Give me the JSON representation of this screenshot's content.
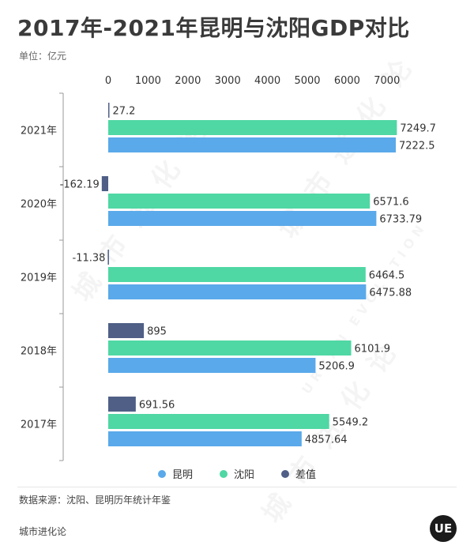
{
  "header": {
    "title": "2017年-2021年昆明与沈阳GDP对比",
    "unit": "单位：亿元"
  },
  "colors": {
    "kunming": "#5aa9ea",
    "shenyang": "#4fd7a4",
    "diff": "#4f5f86",
    "axis": "#999999",
    "tick_text": "#333333"
  },
  "chart_data": {
    "type": "bar",
    "orientation": "horizontal",
    "categories": [
      "2021年",
      "2020年",
      "2019年",
      "2018年",
      "2017年"
    ],
    "series": [
      {
        "name": "差值",
        "values": [
          27.2,
          -162.19,
          -11.38,
          895,
          691.56
        ],
        "labels": [
          "27.2",
          "-162.19",
          "-11.38",
          "895",
          "691.56"
        ]
      },
      {
        "name": "沈阳",
        "values": [
          7249.7,
          6571.6,
          6464.5,
          6101.9,
          5549.2
        ],
        "labels": [
          "7249.7",
          "6571.6",
          "6464.5",
          "6101.9",
          "5549.2"
        ]
      },
      {
        "name": "昆明",
        "values": [
          7222.5,
          6733.79,
          6475.88,
          5206.9,
          4857.64
        ],
        "labels": [
          "7222.5",
          "6733.79",
          "6475.88",
          "5206.9",
          "4857.64"
        ]
      }
    ],
    "xticks": [
      0,
      1000,
      2000,
      3000,
      4000,
      5000,
      6000,
      7000
    ],
    "xtick_labels": [
      "0",
      "1000",
      "2000",
      "3000",
      "4000",
      "5000",
      "6000",
      "7000"
    ],
    "xlim": [
      0,
      7500
    ],
    "legend_position": "bottom",
    "grid": false
  },
  "legend": [
    {
      "label": "昆明",
      "color_key": "kunming"
    },
    {
      "label": "沈阳",
      "color_key": "shenyang"
    },
    {
      "label": "差值",
      "color_key": "diff"
    }
  ],
  "footer": {
    "source": "数据来源：沈阳、昆明历年统计年鉴",
    "brand": "城市进化论",
    "logo_text": "UE"
  },
  "watermarks": [
    "城 市 进 化 论",
    "URBAN EVOLUTION"
  ]
}
